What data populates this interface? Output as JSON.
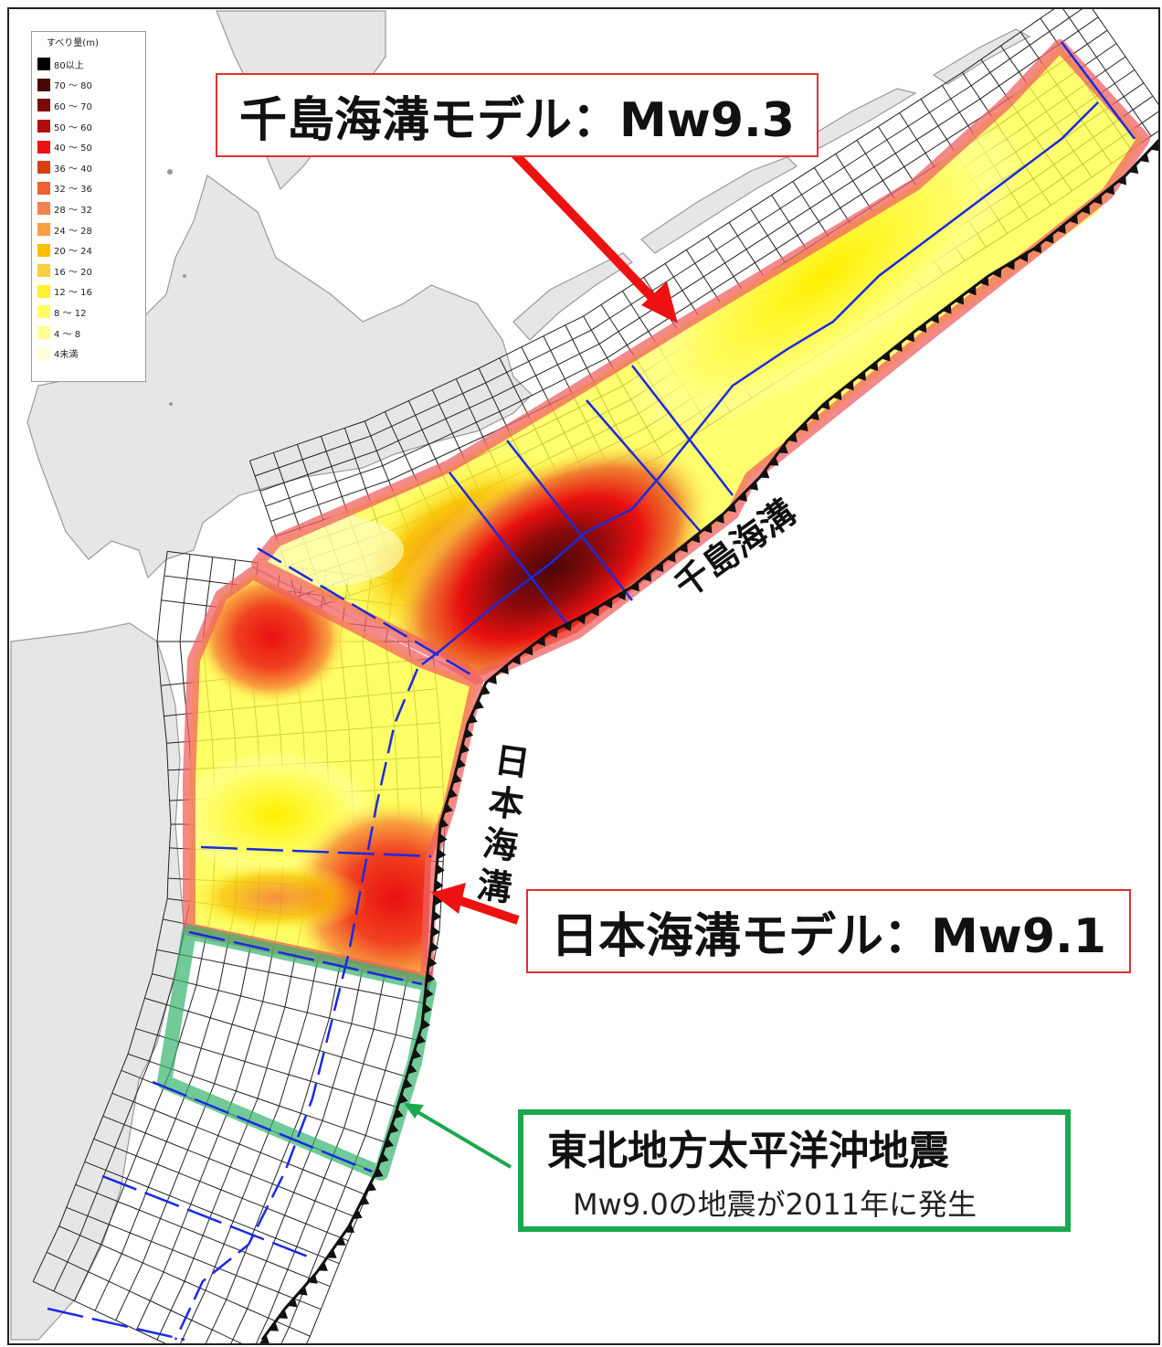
{
  "legend": {
    "title": "すべり量(m)",
    "items": [
      {
        "label": "80以上",
        "color": "#000000"
      },
      {
        "label": "70 ～ 80",
        "color": "#4a0606"
      },
      {
        "label": "60 ～ 70",
        "color": "#7a0a0a"
      },
      {
        "label": "50 ～ 60",
        "color": "#b00c0c"
      },
      {
        "label": "40 ～ 50",
        "color": "#f01212"
      },
      {
        "label": "36 ～ 40",
        "color": "#d84010"
      },
      {
        "label": "32 ～ 36",
        "color": "#f06030"
      },
      {
        "label": "28 ～ 32",
        "color": "#f58050"
      },
      {
        "label": "24 ～ 28",
        "color": "#f8a040"
      },
      {
        "label": "20 ～ 24",
        "color": "#f8c000"
      },
      {
        "label": "16 ～ 20",
        "color": "#f8d040"
      },
      {
        "label": "12 ～ 16",
        "color": "#fff030"
      },
      {
        "label": "8 ～ 12",
        "color": "#ffff60"
      },
      {
        "label": "4 ～ 8",
        "color": "#ffff90"
      },
      {
        "label": "4未満",
        "color": "#ffffd8"
      }
    ]
  },
  "callouts": {
    "chishima": "千島海溝モデル：Mw9.3",
    "nihon": "日本海溝モデル：Mw9.1",
    "tohoku_title": "東北地方太平洋沖地震",
    "tohoku_sub": "Mw9.0の地震が2011年に発生"
  },
  "trench_labels": {
    "chishima": "千島海溝",
    "nihon": "日本海溝"
  },
  "colors": {
    "land": "#e6e6e6",
    "coast": "#9a9a9a",
    "grid": "#222222",
    "model_outline": "#f06262",
    "tohoku_outline": "#34b46c",
    "blue_lines": "#1a2ae0",
    "arrow_red": "#ee1111",
    "arrow_green": "#1aa84c"
  }
}
